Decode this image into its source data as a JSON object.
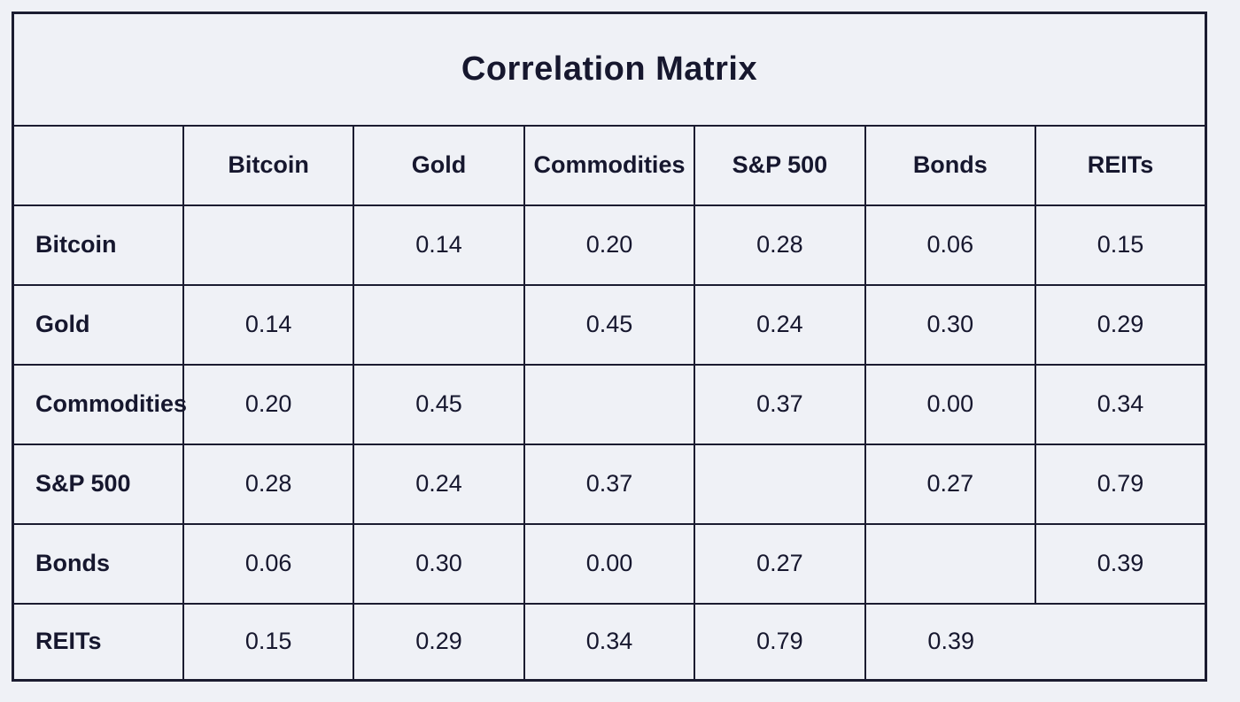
{
  "title": "Correlation Matrix",
  "header": {
    "columns": [
      "Bitcoin",
      "Gold",
      "Commodities",
      "S&P 500",
      "Bonds",
      "REITs"
    ]
  },
  "matrix": {
    "rows": [
      {
        "label": "Bitcoin",
        "values": [
          "",
          "0.14",
          "0.20",
          "0.28",
          "0.06",
          "0.15"
        ]
      },
      {
        "label": "Gold",
        "values": [
          "0.14",
          "",
          "0.45",
          "0.24",
          "0.30",
          "0.29"
        ]
      },
      {
        "label": "Commodities",
        "values": [
          "0.20",
          "0.45",
          "",
          "0.37",
          "0.00",
          "0.34"
        ]
      },
      {
        "label": "S&P 500",
        "values": [
          "0.28",
          "0.24",
          "0.37",
          "",
          "0.27",
          "0.79"
        ]
      },
      {
        "label": "Bonds",
        "values": [
          "0.06",
          "0.30",
          "0.00",
          "0.27",
          "",
          "0.39"
        ]
      },
      {
        "label": "REITs",
        "values": [
          "0.15",
          "0.29",
          "0.34",
          "0.79",
          "0.39",
          ""
        ]
      }
    ]
  },
  "chart_data": {
    "type": "table",
    "title": "Correlation Matrix",
    "row_labels": [
      "Bitcoin",
      "Gold",
      "Commodities",
      "S&P 500",
      "Bonds",
      "REITs"
    ],
    "col_labels": [
      "Bitcoin",
      "Gold",
      "Commodities",
      "S&P 500",
      "Bonds",
      "REITs"
    ],
    "matrix": [
      [
        null,
        0.14,
        0.2,
        0.28,
        0.06,
        0.15
      ],
      [
        0.14,
        null,
        0.45,
        0.24,
        0.3,
        0.29
      ],
      [
        0.2,
        0.45,
        null,
        0.37,
        0.0,
        0.34
      ],
      [
        0.28,
        0.24,
        0.37,
        null,
        0.27,
        0.79
      ],
      [
        0.06,
        0.3,
        0.0,
        0.27,
        null,
        0.39
      ],
      [
        0.15,
        0.29,
        0.34,
        0.79,
        0.39,
        null
      ]
    ],
    "notes": "Diagonal cells are blank; bottom-right REITs/Bonds pair shares one merged cell containing 0.39"
  },
  "colors": {
    "background": "#eff1f6",
    "border": "#1b1c30",
    "text": "#16172e"
  }
}
